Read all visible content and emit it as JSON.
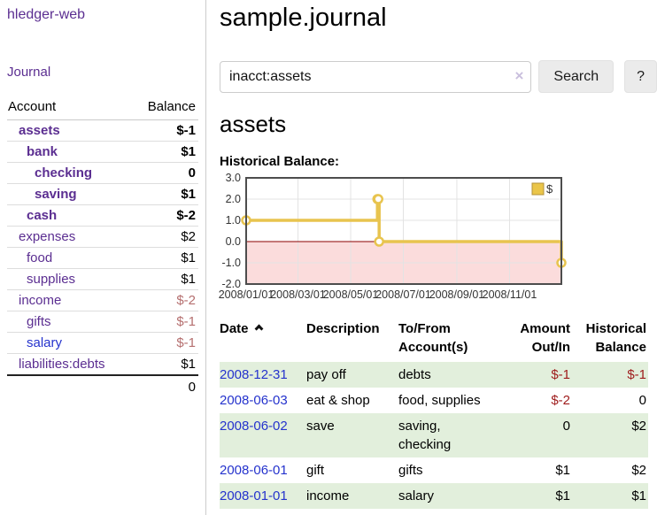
{
  "app": {
    "title": "hledger-web"
  },
  "nav": {
    "journal_label": "Journal"
  },
  "sidebar": {
    "header": {
      "account": "Account",
      "balance": "Balance"
    },
    "accounts": [
      {
        "name": "assets",
        "balance": "$-1"
      },
      {
        "name": "bank",
        "balance": "$1"
      },
      {
        "name": "checking",
        "balance": "0"
      },
      {
        "name": "saving",
        "balance": "$1"
      },
      {
        "name": "cash",
        "balance": "$-2"
      },
      {
        "name": "expenses",
        "balance": "$2"
      },
      {
        "name": "food",
        "balance": "$1"
      },
      {
        "name": "supplies",
        "balance": "$1"
      },
      {
        "name": "income",
        "balance": "$-2"
      },
      {
        "name": "gifts",
        "balance": "$-1"
      },
      {
        "name": "salary",
        "balance": "$-1"
      },
      {
        "name": "liabilities:debts",
        "balance": "$1"
      }
    ],
    "total": "0"
  },
  "header": {
    "title": "sample.journal"
  },
  "search": {
    "value": "inacct:assets",
    "clear_icon": "×",
    "button_label": "Search",
    "help_label": "?"
  },
  "main": {
    "account_heading": "assets",
    "chart_label": "Historical Balance:"
  },
  "chart_data": {
    "type": "line",
    "title": "Historical Balance",
    "legend": "$",
    "ylim": [
      -2,
      3
    ],
    "yticks": [
      3,
      2,
      1,
      0,
      -1,
      -2
    ],
    "xticks": [
      "2008/01/01",
      "2008/03/01",
      "2008/05/01",
      "2008/07/01",
      "2008/09/01",
      "2008/11/01"
    ],
    "points": [
      {
        "date": "2008/01/01",
        "value": 1
      },
      {
        "date": "2008/06/01",
        "value": 2
      },
      {
        "date": "2008/06/02",
        "value": 2
      },
      {
        "date": "2008/06/03",
        "value": 0
      },
      {
        "date": "2008/12/31",
        "value": -1
      }
    ],
    "colors": {
      "line": "#e8c44f",
      "legend_fill": "#eac549",
      "legend_border": "#b3913a",
      "negative_region": "#fbdcdc",
      "zero_line": "#8b0000",
      "border": "#4d4d4d",
      "grid": "#e3e3e3",
      "tick_text": "#333333"
    }
  },
  "table": {
    "headers": {
      "date": "Date",
      "description": "Description",
      "accounts": "To/From Account(s)",
      "amount": "Amount Out/In",
      "balance": "Historical Balance"
    },
    "rows": [
      {
        "date": "2008-12-31",
        "description": "pay off",
        "accounts": "debts",
        "amount": "$-1",
        "balance": "$-1"
      },
      {
        "date": "2008-06-03",
        "description": "eat & shop",
        "accounts": "food, supplies",
        "amount": "$-2",
        "balance": "0"
      },
      {
        "date": "2008-06-02",
        "description": "save",
        "accounts": "saving, checking",
        "amount": "0",
        "balance": "$2"
      },
      {
        "date": "2008-06-01",
        "description": "gift",
        "accounts": "gifts",
        "amount": "$1",
        "balance": "$2"
      },
      {
        "date": "2008-01-01",
        "description": "income",
        "accounts": "salary",
        "amount": "$1",
        "balance": "$1"
      }
    ]
  }
}
